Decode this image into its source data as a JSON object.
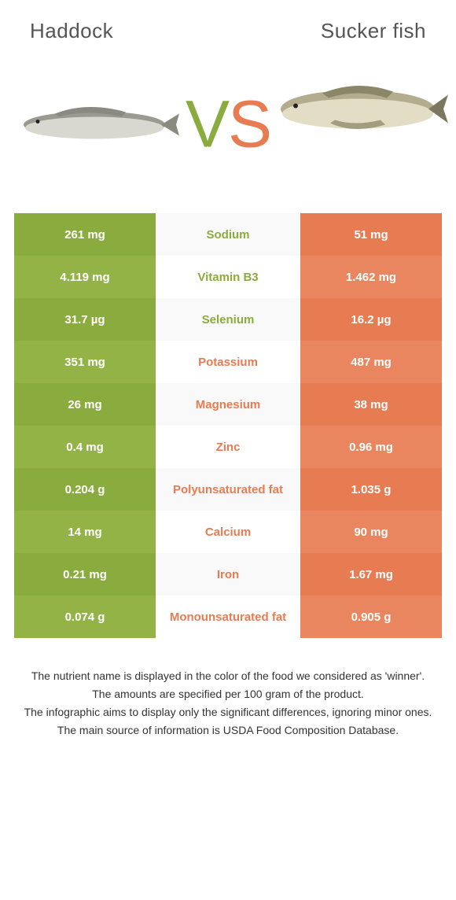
{
  "header": {
    "left": "Haddock",
    "right": "Sucker fish"
  },
  "vs": {
    "v_color": "#8aab3d",
    "s_color": "#e77b52"
  },
  "colors": {
    "left": "#8aab3d",
    "left_alt": "#93b347",
    "right": "#e77b52",
    "right_alt": "#ea865f",
    "mid_a": "#f9f9f9",
    "mid_b": "#ffffff",
    "text_dark": "#333333"
  },
  "rows": [
    {
      "left": "261 mg",
      "mid": "Sodium",
      "right": "51 mg",
      "winner": "left"
    },
    {
      "left": "4.119 mg",
      "mid": "Vitamin B3",
      "right": "1.462 mg",
      "winner": "left"
    },
    {
      "left": "31.7 µg",
      "mid": "Selenium",
      "right": "16.2 µg",
      "winner": "left"
    },
    {
      "left": "351 mg",
      "mid": "Potassium",
      "right": "487 mg",
      "winner": "right"
    },
    {
      "left": "26 mg",
      "mid": "Magnesium",
      "right": "38 mg",
      "winner": "right"
    },
    {
      "left": "0.4 mg",
      "mid": "Zinc",
      "right": "0.96 mg",
      "winner": "right"
    },
    {
      "left": "0.204 g",
      "mid": "Polyunsaturated fat",
      "right": "1.035 g",
      "winner": "right"
    },
    {
      "left": "14 mg",
      "mid": "Calcium",
      "right": "90 mg",
      "winner": "right"
    },
    {
      "left": "0.21 mg",
      "mid": "Iron",
      "right": "1.67 mg",
      "winner": "right"
    },
    {
      "left": "0.074 g",
      "mid": "Monounsaturated fat",
      "right": "0.905 g",
      "winner": "right"
    }
  ],
  "footer": [
    "The nutrient name is displayed in the color of the food we considered as 'winner'.",
    "The amounts are specified per 100 gram of the product.",
    "The infographic aims to display only the significant differences, ignoring minor ones.",
    "The main source of information is USDA Food Composition Database."
  ]
}
